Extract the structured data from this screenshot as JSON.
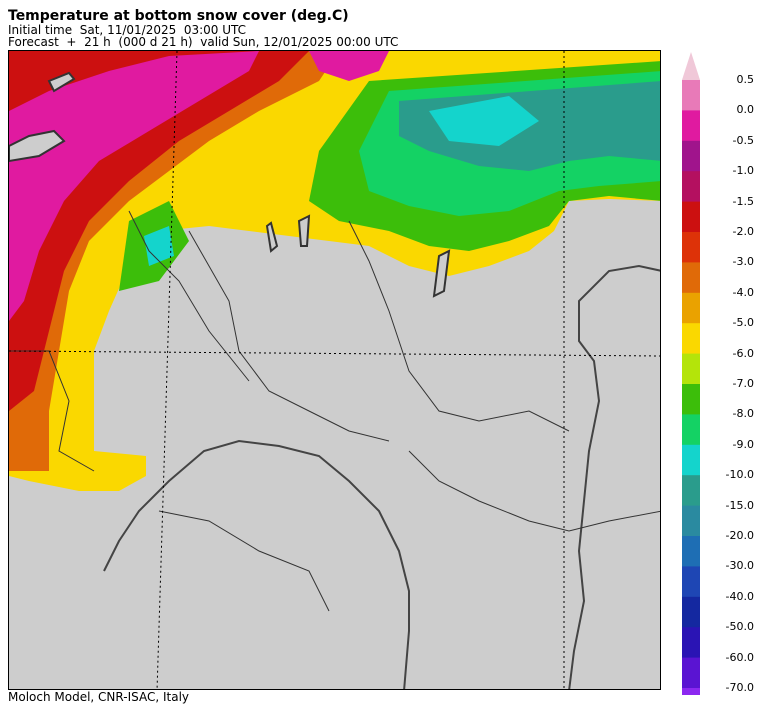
{
  "header": {
    "title": "Temperature at bottom snow cover (deg.C)",
    "initial_time": "Initial time  Sat, 11/01/2025  03:00 UTC",
    "forecast": "Forecast  +  21 h  (000 d 21 h)  valid Sun, 12/01/2025 00:00 UTC"
  },
  "footer": "Moloch Model, CNR-ISAC, Italy",
  "colorbar": {
    "levels": [
      "0.5",
      "0.0",
      "-0.5",
      "-1.0",
      "-1.5",
      "-2.0",
      "-3.0",
      "-4.0",
      "-5.0",
      "-6.0",
      "-7.0",
      "-8.0",
      "-9.0",
      "-10.0",
      "-15.0",
      "-20.0",
      "-30.0",
      "-40.0",
      "-50.0",
      "-60.0",
      "-70.0"
    ],
    "colors": [
      "#e87ab8",
      "#e01aa0",
      "#a0148c",
      "#b41060",
      "#cc1010",
      "#dd3208",
      "#e06a08",
      "#eaa200",
      "#fad800",
      "#b4e40a",
      "#3cbe0a",
      "#14d264",
      "#14d4cc",
      "#2a9c8c",
      "#2a8aa0",
      "#1e6eb4",
      "#1e46b4",
      "#1428a0",
      "#2a14b4",
      "#5a14d2",
      "#8c28f0"
    ],
    "top_arrow_color": "#f0c8d8",
    "bottom_arrow_color": "#b478f0"
  },
  "map": {
    "no_snow_color": "#cdcdcd"
  }
}
